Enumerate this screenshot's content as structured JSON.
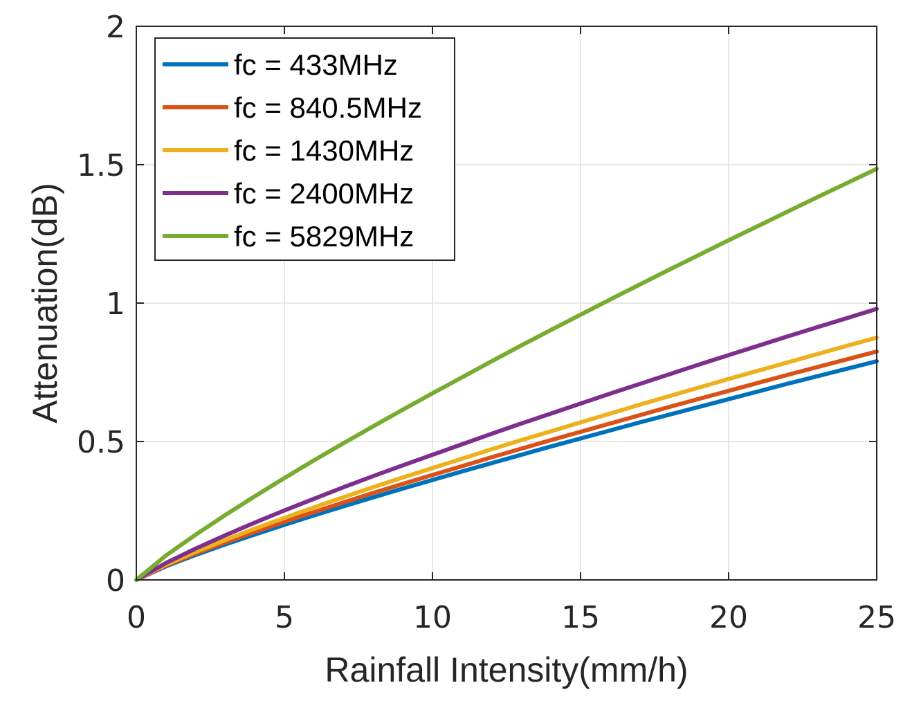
{
  "chart_data": {
    "type": "line",
    "title": "",
    "xlabel": "Rainfall Intensity(mm/h)",
    "ylabel": "Attenuation(dB)",
    "xlim": [
      0,
      25
    ],
    "ylim": [
      0,
      2
    ],
    "xticks": [
      0,
      5,
      10,
      15,
      20,
      25
    ],
    "yticks": [
      0,
      0.5,
      1,
      1.5,
      2
    ],
    "xtick_labels": [
      "0",
      "5",
      "10",
      "15",
      "20",
      "25"
    ],
    "ytick_labels": [
      "0",
      "0.5",
      "1",
      "1.5",
      "2"
    ],
    "grid": true,
    "legend_position": "top-left",
    "x": [
      0,
      1,
      2,
      3,
      4,
      5,
      6,
      7,
      8,
      9,
      10,
      11,
      12,
      13,
      14,
      15,
      16,
      17,
      18,
      19,
      20,
      21,
      22,
      23,
      24,
      25
    ],
    "series": [
      {
        "name": "fc = 433MHz",
        "color": "#0072BD",
        "values": [
          0,
          0.049,
          0.09,
          0.128,
          0.164,
          0.199,
          0.233,
          0.266,
          0.298,
          0.33,
          0.361,
          0.392,
          0.422,
          0.452,
          0.482,
          0.511,
          0.54,
          0.569,
          0.597,
          0.625,
          0.653,
          0.681,
          0.709,
          0.736,
          0.763,
          0.79
        ]
      },
      {
        "name": "fc = 840.5MHz",
        "color": "#D95319",
        "values": [
          0,
          0.052,
          0.095,
          0.135,
          0.173,
          0.21,
          0.245,
          0.28,
          0.314,
          0.347,
          0.379,
          0.411,
          0.443,
          0.474,
          0.505,
          0.535,
          0.565,
          0.595,
          0.625,
          0.654,
          0.683,
          0.712,
          0.741,
          0.769,
          0.797,
          0.825
        ]
      },
      {
        "name": "fc = 1430MHz",
        "color": "#EDB120",
        "values": [
          0,
          0.055,
          0.101,
          0.144,
          0.185,
          0.224,
          0.262,
          0.299,
          0.335,
          0.37,
          0.404,
          0.438,
          0.472,
          0.505,
          0.537,
          0.569,
          0.601,
          0.633,
          0.664,
          0.695,
          0.726,
          0.756,
          0.786,
          0.816,
          0.846,
          0.875
        ]
      },
      {
        "name": "fc = 2400MHz",
        "color": "#7E2F8E",
        "values": [
          0,
          0.061,
          0.113,
          0.161,
          0.207,
          0.251,
          0.293,
          0.335,
          0.375,
          0.414,
          0.452,
          0.49,
          0.528,
          0.565,
          0.601,
          0.637,
          0.673,
          0.708,
          0.743,
          0.778,
          0.812,
          0.846,
          0.88,
          0.913,
          0.946,
          0.979
        ]
      },
      {
        "name": "fc = 5829MHz",
        "color": "#77AC30",
        "values": [
          0,
          0.088,
          0.163,
          0.234,
          0.302,
          0.368,
          0.432,
          0.494,
          0.555,
          0.615,
          0.674,
          0.732,
          0.79,
          0.847,
          0.903,
          0.958,
          1.013,
          1.067,
          1.121,
          1.174,
          1.227,
          1.279,
          1.331,
          1.383,
          1.434,
          1.485
        ]
      }
    ]
  }
}
